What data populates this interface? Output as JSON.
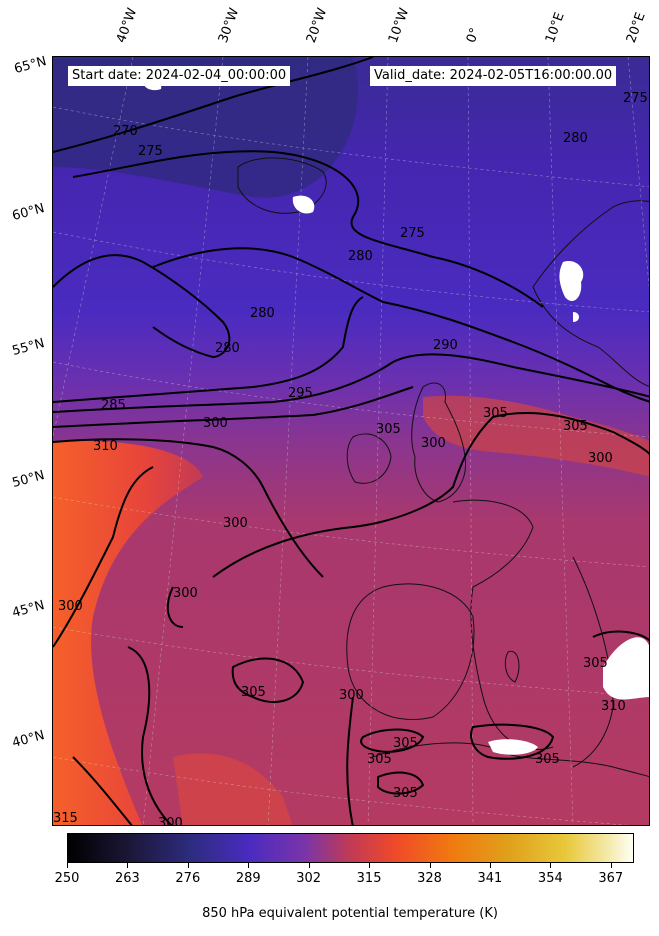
{
  "map": {
    "start_label": "Start date: 2024-02-04_00:00:00",
    "valid_label": "Valid_date: 2024-02-05T16:00:00.00",
    "longitude_labels": [
      "40°W",
      "30°W",
      "20°W",
      "10°W",
      "0°",
      "10°E",
      "20°E"
    ],
    "latitude_labels": [
      "65°N",
      "60°N",
      "55°N",
      "50°N",
      "45°N",
      "40°N"
    ],
    "contour_labels": [
      "270",
      "275",
      "275",
      "275",
      "280",
      "280",
      "280",
      "280",
      "285",
      "290",
      "295",
      "300",
      "300",
      "300",
      "300",
      "300",
      "300",
      "305",
      "305",
      "305",
      "305",
      "305",
      "305",
      "305",
      "305",
      "305",
      "310",
      "310",
      "315",
      "300",
      "300"
    ],
    "colors": {
      "cold": "#2e2c80",
      "mid_cold": "#4a2bc0",
      "mid": "#a8386e",
      "warm": "#f04a28",
      "contour": "#000000",
      "missing": "#ffffff"
    }
  },
  "colorbar": {
    "title": "850 hPa equivalent potential temperature (K)",
    "ticks": [
      "250",
      "263",
      "276",
      "289",
      "302",
      "315",
      "328",
      "341",
      "354",
      "367"
    ],
    "range": [
      250,
      372
    ]
  }
}
